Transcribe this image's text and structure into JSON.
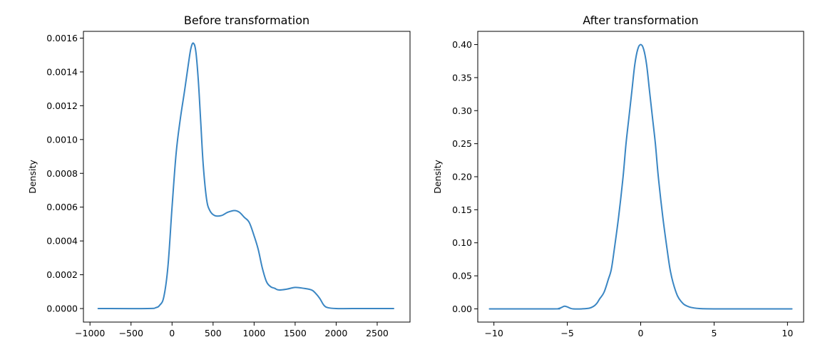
{
  "chart_data": [
    {
      "type": "line",
      "title": "Before transformation",
      "xlabel": "",
      "ylabel": "Density",
      "xlim": [
        -1080,
        2900
      ],
      "ylim": [
        -8e-05,
        0.00164
      ],
      "xticks": [
        -1000,
        -500,
        0,
        500,
        1000,
        1500,
        2000,
        2500
      ],
      "xtick_labels": [
        "−1000",
        "−500",
        "0",
        "500",
        "1000",
        "1500",
        "2000",
        "2500"
      ],
      "yticks": [
        0,
        0.0002,
        0.0004,
        0.0006,
        0.0008,
        0.001,
        0.0012,
        0.0014,
        0.0016
      ],
      "ytick_labels": [
        "0.0000",
        "0.0002",
        "0.0004",
        "0.0006",
        "0.0008",
        "0.0010",
        "0.0012",
        "0.0014",
        "0.0016"
      ],
      "grid": false,
      "series": [
        {
          "color": "#3a86c3",
          "x": [
            -900,
            -300,
            -200,
            -150,
            -100,
            -50,
            0,
            50,
            100,
            150,
            200,
            230,
            260,
            290,
            320,
            350,
            380,
            420,
            460,
            520,
            600,
            680,
            760,
            820,
            880,
            940,
            1000,
            1050,
            1100,
            1150,
            1200,
            1250,
            1300,
            1400,
            1500,
            1600,
            1700,
            1750,
            1800,
            1850,
            1900,
            2000,
            2200,
            2700
          ],
          "y": [
            0,
            0,
            5e-06,
            2e-05,
            7e-05,
            0.00025,
            0.0006,
            0.00092,
            0.00112,
            0.00128,
            0.00145,
            0.00154,
            0.00157,
            0.00152,
            0.00135,
            0.0011,
            0.00085,
            0.00065,
            0.00058,
            0.00055,
            0.00055,
            0.00057,
            0.00058,
            0.00057,
            0.00054,
            0.00051,
            0.00043,
            0.00035,
            0.00024,
            0.00016,
            0.00013,
            0.00012,
            0.00011,
            0.000115,
            0.000125,
            0.00012,
            0.00011,
            9e-05,
            6e-05,
            2e-05,
            5e-06,
            0,
            0,
            0
          ]
        }
      ]
    },
    {
      "type": "line",
      "title": "After transformation",
      "xlabel": "",
      "ylabel": "Density",
      "xlim": [
        -11.1,
        11.1
      ],
      "ylim": [
        -0.02,
        0.42
      ],
      "xticks": [
        -10,
        -5,
        0,
        5,
        10
      ],
      "xtick_labels": [
        "−10",
        "−5",
        "0",
        "5",
        "10"
      ],
      "yticks": [
        0,
        0.05,
        0.1,
        0.15,
        0.2,
        0.25,
        0.3,
        0.35,
        0.4
      ],
      "ytick_labels": [
        "0.00",
        "0.05",
        "0.10",
        "0.15",
        "0.20",
        "0.25",
        "0.30",
        "0.35",
        "0.40"
      ],
      "grid": false,
      "series": [
        {
          "color": "#3a86c3",
          "x": [
            -10.3,
            -6,
            -5.6,
            -5.4,
            -5.2,
            -5.0,
            -4.8,
            -4.6,
            -4.0,
            -3.5,
            -3.2,
            -3.0,
            -2.8,
            -2.5,
            -2.2,
            -2.0,
            -1.8,
            -1.5,
            -1.2,
            -1.0,
            -0.8,
            -0.6,
            -0.4,
            -0.2,
            0,
            0.2,
            0.4,
            0.6,
            0.8,
            1.0,
            1.2,
            1.5,
            1.8,
            2.0,
            2.2,
            2.5,
            2.8,
            3.0,
            3.3,
            3.6,
            4.0,
            5.0,
            10.3
          ],
          "y": [
            0,
            0,
            0.0005,
            0.002,
            0.004,
            0.003,
            0.001,
            0,
            0,
            0.001,
            0.004,
            0.008,
            0.015,
            0.025,
            0.045,
            0.06,
            0.09,
            0.14,
            0.2,
            0.25,
            0.29,
            0.33,
            0.37,
            0.393,
            0.4,
            0.393,
            0.37,
            0.33,
            0.29,
            0.25,
            0.2,
            0.14,
            0.09,
            0.06,
            0.04,
            0.02,
            0.01,
            0.006,
            0.003,
            0.0015,
            0.0005,
            0,
            0
          ]
        }
      ]
    }
  ]
}
